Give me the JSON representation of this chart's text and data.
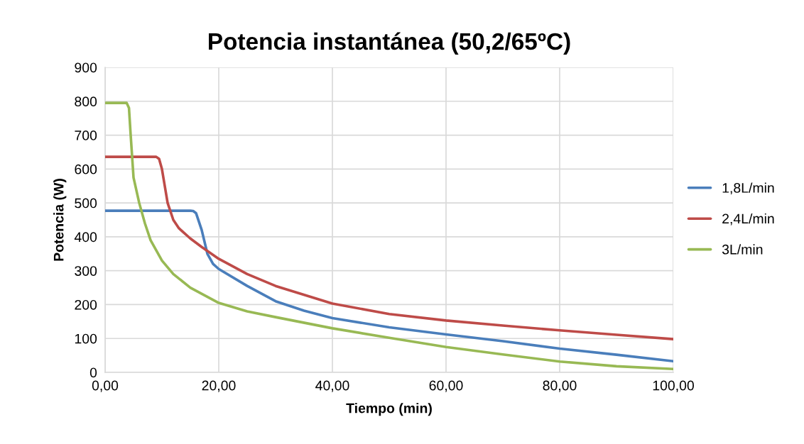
{
  "chart_data": {
    "type": "line",
    "title": "Potencia instantánea (50,2/65ºC)",
    "xlabel": "Tiempo (min)",
    "ylabel": "Potencia (W)",
    "xlim": [
      0,
      100
    ],
    "xticks": [
      {
        "value": 0,
        "label": "0,00"
      },
      {
        "value": 20,
        "label": "20,00"
      },
      {
        "value": 40,
        "label": "40,00"
      },
      {
        "value": 60,
        "label": "60,00"
      },
      {
        "value": 80,
        "label": "80,00"
      },
      {
        "value": 100,
        "label": "100,00"
      }
    ],
    "ylim": [
      0,
      900
    ],
    "yticks": [
      0,
      100,
      200,
      300,
      400,
      500,
      600,
      700,
      800,
      900
    ],
    "grid": true,
    "legend": "right",
    "marker": "none",
    "line_style": "solid",
    "series": [
      {
        "name": "1,8L/min",
        "color": "#4a7ebb",
        "x": [
          0,
          5,
          10,
          15,
          15.5,
          16,
          17,
          18,
          19,
          20,
          25,
          30,
          35,
          40,
          50,
          60,
          70,
          80,
          90,
          100
        ],
        "values": [
          477,
          477,
          477,
          477,
          476,
          470,
          420,
          350,
          320,
          305,
          255,
          210,
          182,
          160,
          133,
          112,
          92,
          70,
          52,
          33
        ]
      },
      {
        "name": "2,4L/min",
        "color": "#be4b48",
        "x": [
          0,
          5,
          9,
          9.5,
          10,
          10.5,
          11,
          12,
          13,
          15,
          17,
          20,
          25,
          30,
          40,
          50,
          60,
          70,
          80,
          90,
          100
        ],
        "values": [
          636,
          636,
          636,
          630,
          600,
          550,
          500,
          450,
          425,
          395,
          370,
          335,
          290,
          255,
          203,
          172,
          153,
          138,
          124,
          111,
          98
        ]
      },
      {
        "name": "3L/min",
        "color": "#98b954",
        "x": [
          0,
          3.8,
          4.2,
          4.5,
          5,
          6,
          7,
          8,
          10,
          12,
          15,
          20,
          25,
          30,
          40,
          50,
          60,
          70,
          80,
          90,
          100
        ],
        "values": [
          795,
          795,
          780,
          700,
          575,
          500,
          440,
          390,
          330,
          290,
          250,
          205,
          180,
          163,
          130,
          102,
          75,
          53,
          32,
          18,
          10
        ]
      }
    ]
  }
}
